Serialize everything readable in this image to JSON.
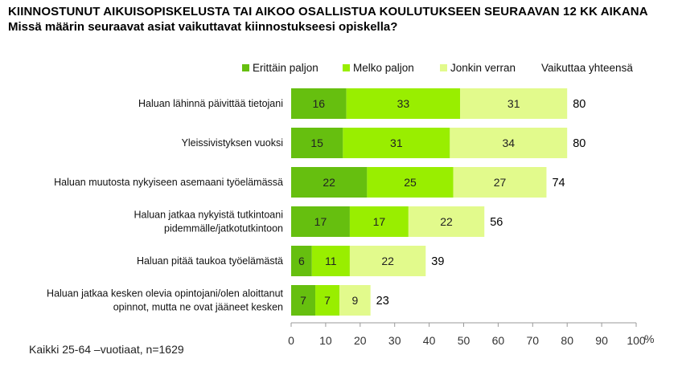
{
  "title": "KIINNOSTUNUT AIKUISOPISKELUSTA TAI AIKOO OSALLISTUA KOULUTUKSEEN SEURAAVAN 12 KK AIKANA",
  "subtitle": "Missä määrin seuraavat asiat vaikuttavat kiinnostukseesi opiskella?",
  "note": "Kaikki 25-64 –vuotiaat, n=1629",
  "colors": {
    "series": [
      "#66bf0f",
      "#99ee00",
      "#e2fa8c"
    ],
    "axis": "#999999"
  },
  "chart_data": {
    "type": "bar",
    "orientation": "horizontal",
    "stacked": true,
    "categories": [
      [
        "Haluan lähinnä päivittää tietojani"
      ],
      [
        "Yleissivistyksen vuoksi"
      ],
      [
        "Haluan muutosta nykyiseen asemaani työelämässä"
      ],
      [
        "Haluan jatkaa nykyistä tutkintoani",
        "pidemmälle/jatkotutkintoon"
      ],
      [
        "Haluan pitää taukoa työelämästä"
      ],
      [
        "Haluan jatkaa kesken olevia opintojani/olen aloittanut",
        "opinnot, mutta ne ovat jääneet kesken"
      ]
    ],
    "series": [
      {
        "name": "Erittäin paljon",
        "values": [
          16,
          15,
          22,
          17,
          6,
          7
        ]
      },
      {
        "name": "Melko paljon",
        "values": [
          33,
          31,
          25,
          17,
          11,
          7
        ]
      },
      {
        "name": "Jonkin verran",
        "values": [
          31,
          34,
          27,
          22,
          22,
          9
        ]
      }
    ],
    "totals_label": "Vaikuttaa yhteensä",
    "totals": [
      80,
      80,
      74,
      56,
      39,
      23
    ],
    "xlim": [
      0,
      100
    ],
    "xticks": [
      0,
      10,
      20,
      30,
      40,
      50,
      60,
      70,
      80,
      90,
      100
    ],
    "xunit": "%",
    "legend_position": "top",
    "grid": false
  }
}
